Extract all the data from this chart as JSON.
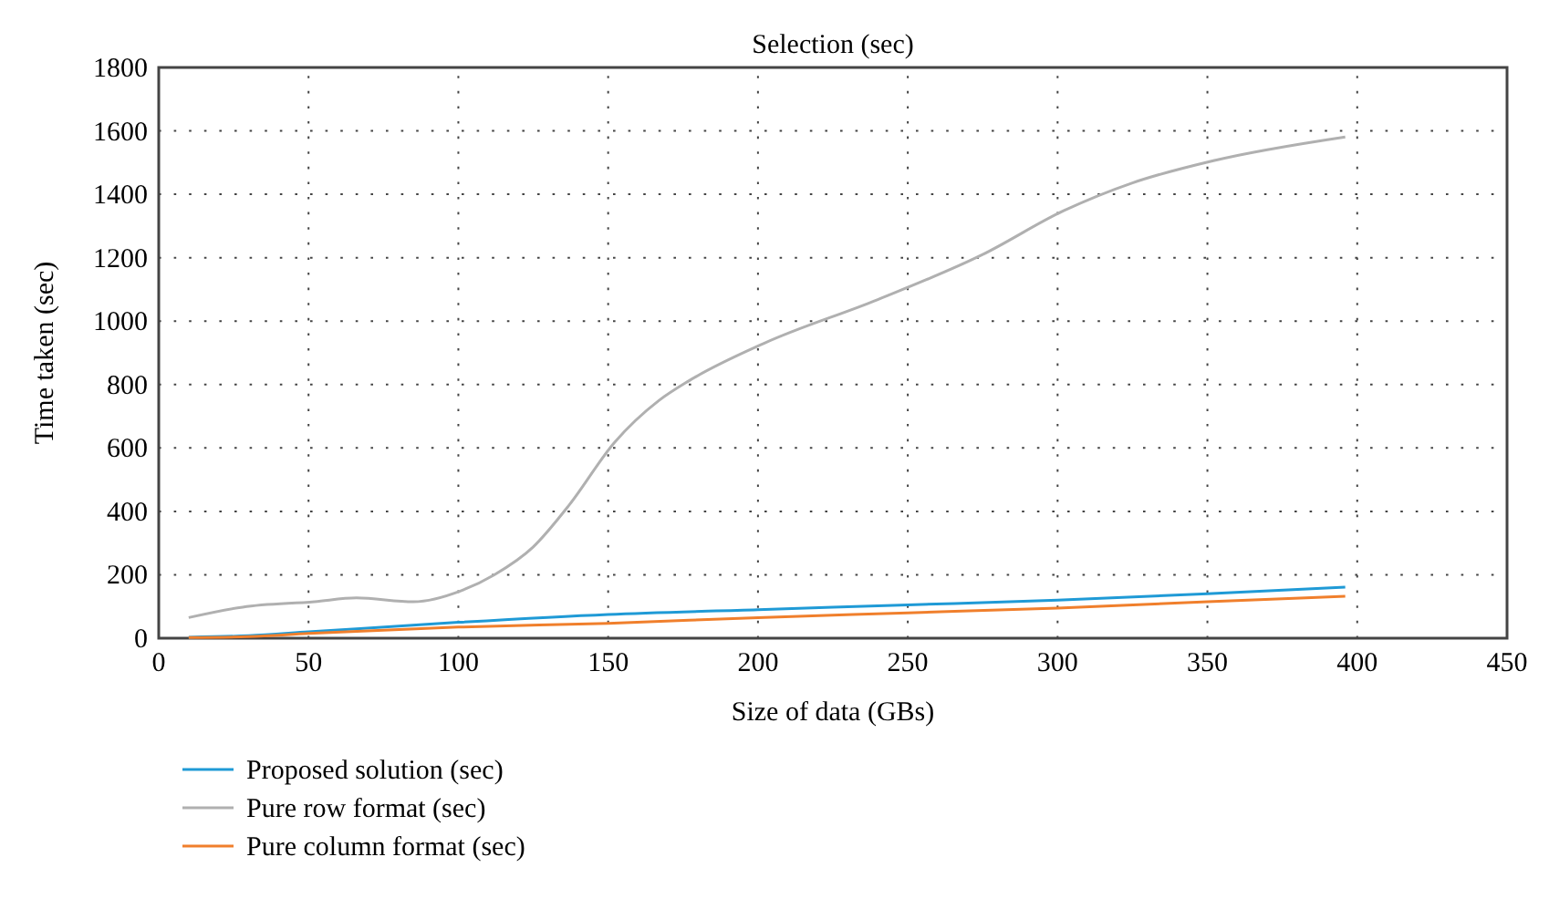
{
  "chart_data": {
    "type": "line",
    "title": "Selection (sec)",
    "xlabel": "Size of data (GBs)",
    "ylabel": "Time taken (sec)",
    "xlim": [
      0,
      450
    ],
    "xticks": [
      0,
      50,
      100,
      150,
      200,
      250,
      300,
      350,
      400,
      450
    ],
    "ylim": [
      0,
      1800
    ],
    "yticks": [
      0,
      200,
      400,
      600,
      800,
      1000,
      1200,
      1400,
      1600,
      1800
    ],
    "grid": true,
    "legend": "bottom",
    "line_style": "solid",
    "marker": "none",
    "series": [
      {
        "name": "Proposed solution (sec)",
        "color": "#1f9ad6",
        "x": [
          10,
          30,
          50,
          100,
          150,
          200,
          250,
          300,
          350,
          396
        ],
        "values": [
          3,
          8,
          20,
          50,
          75,
          90,
          105,
          120,
          140,
          161
        ]
      },
      {
        "name": "Pure row format (sec)",
        "color": "#b0b0b0",
        "x": [
          10,
          28,
          52,
          66,
          85,
          101,
          112,
          125,
          137,
          152,
          167,
          177,
          202,
          240,
          275,
          302,
          325,
          352,
          396
        ],
        "values": [
          65,
          98,
          115,
          127,
          115,
          150,
          200,
          288,
          420,
          616,
          750,
          812,
          930,
          1068,
          1210,
          1348,
          1436,
          1506,
          1581
        ]
      },
      {
        "name": "Pure column format (sec)",
        "color": "#f07f2c",
        "x": [
          10,
          30,
          50,
          100,
          150,
          200,
          250,
          300,
          350,
          396
        ],
        "values": [
          2,
          5,
          15,
          35,
          47,
          65,
          80,
          95,
          115,
          132
        ]
      }
    ]
  }
}
